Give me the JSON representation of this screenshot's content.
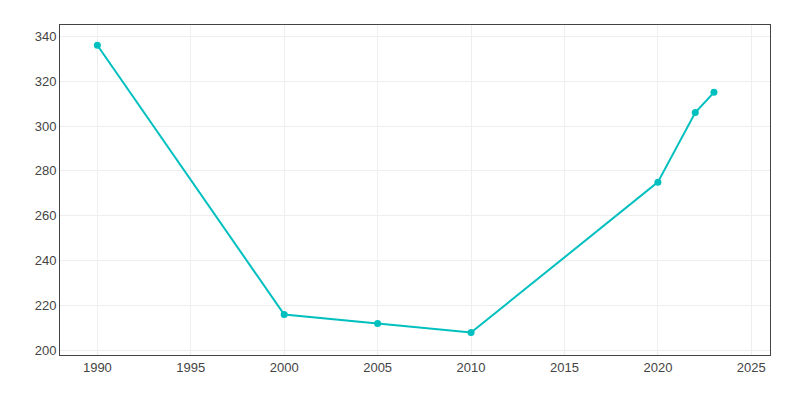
{
  "chart_data": {
    "type": "line",
    "x": [
      1990,
      2000,
      2005,
      2010,
      2020,
      2022,
      2023
    ],
    "values": [
      336,
      216,
      212,
      208,
      275,
      306,
      315
    ],
    "color": "#00BFBF",
    "marker": "circle",
    "xlim": [
      1988,
      2026
    ],
    "xticks": [
      1990,
      1995,
      2000,
      2005,
      2010,
      2015,
      2020,
      2025
    ],
    "ylim": [
      198,
      345
    ],
    "yticks": [
      200,
      220,
      240,
      260,
      280,
      300,
      320,
      340
    ],
    "grid": true
  }
}
